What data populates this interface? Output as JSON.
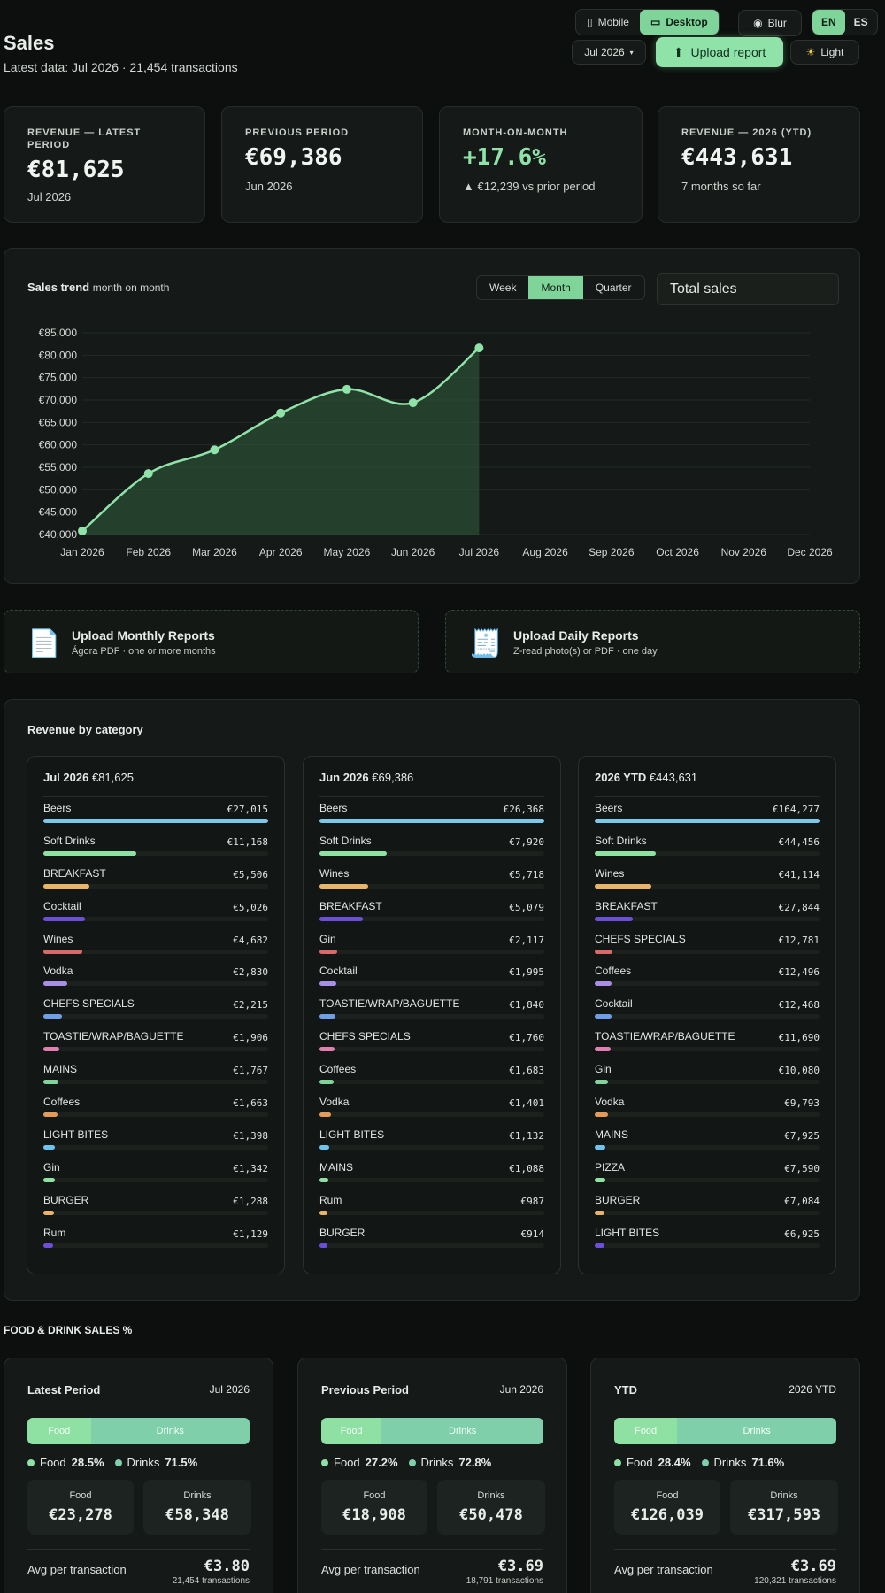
{
  "header": {
    "title": "Sales",
    "subtitle": "Latest data: Jul 2026 · 21,454 transactions",
    "view_mobile": "Mobile",
    "view_desktop": "Desktop",
    "blur": "Blur",
    "lang_en": "EN",
    "lang_es": "ES",
    "period": "Jul 2026",
    "upload": "Upload report",
    "theme": "Light"
  },
  "kpis": [
    {
      "label": "REVENUE — LATEST PERIOD",
      "value": "€81,625",
      "sub": "Jul 2026"
    },
    {
      "label": "PREVIOUS PERIOD",
      "value": "€69,386",
      "sub": "Jun 2026"
    },
    {
      "label": "MONTH-ON-MONTH",
      "value": "+17.6%",
      "sub": "▲ €12,239 vs prior period"
    },
    {
      "label": "REVENUE — 2026 (YTD)",
      "value": "€443,631",
      "sub": "7 months so far"
    }
  ],
  "trend": {
    "title": "Sales trend",
    "title_suffix": "month on month",
    "ranges": [
      "Week",
      "Month",
      "Quarter"
    ],
    "active_range": "Month",
    "metric": "Total sales"
  },
  "chart_data": {
    "type": "area",
    "title": "Sales trend",
    "x": [
      "Jan 2026",
      "Feb 2026",
      "Mar 2026",
      "Apr 2026",
      "May 2026",
      "Jun 2026",
      "Jul 2026",
      "Aug 2026",
      "Sep 2026",
      "Oct 2026",
      "Nov 2026",
      "Dec 2026"
    ],
    "series": [
      {
        "values": [
          40800,
          53600,
          58900,
          67100,
          72400,
          69386,
          81625,
          null,
          null,
          null,
          null,
          null
        ]
      }
    ],
    "ylim": [
      40000,
      85000
    ],
    "yticks": [
      40000,
      45000,
      50000,
      55000,
      60000,
      65000,
      70000,
      75000,
      80000,
      85000
    ],
    "ytick_labels": [
      "€40,000",
      "€45,000",
      "€50,000",
      "€55,000",
      "€60,000",
      "€65,000",
      "€70,000",
      "€75,000",
      "€80,000",
      "€85,000"
    ],
    "color": "#8fe2a8",
    "grid": true
  },
  "uploads": [
    {
      "icon": "document-icon",
      "title": "Upload Monthly Reports",
      "sub": "Ágora PDF · one or more months"
    },
    {
      "icon": "receipt-icon",
      "title": "Upload Daily Reports",
      "sub": "Z-read photo(s) or PDF · one day"
    }
  ],
  "categories": {
    "title": "Revenue by category",
    "columns": [
      {
        "period": "Jul 2026",
        "total": "€81,625",
        "items": [
          {
            "name": "Beers",
            "value": "€27,015",
            "amount": 27015
          },
          {
            "name": "Soft Drinks",
            "value": "€11,168",
            "amount": 11168
          },
          {
            "name": "BREAKFAST",
            "value": "€5,506",
            "amount": 5506
          },
          {
            "name": "Cocktail",
            "value": "€5,026",
            "amount": 5026
          },
          {
            "name": "Wines",
            "value": "€4,682",
            "amount": 4682
          },
          {
            "name": "Vodka",
            "value": "€2,830",
            "amount": 2830
          },
          {
            "name": "CHEFS SPECIALS",
            "value": "€2,215",
            "amount": 2215
          },
          {
            "name": "TOASTIE/WRAP/BAGUETTE",
            "value": "€1,906",
            "amount": 1906
          },
          {
            "name": "MAINS",
            "value": "€1,767",
            "amount": 1767
          },
          {
            "name": "Coffees",
            "value": "€1,663",
            "amount": 1663
          },
          {
            "name": "LIGHT BITES",
            "value": "€1,398",
            "amount": 1398
          },
          {
            "name": "Gin",
            "value": "€1,342",
            "amount": 1342
          },
          {
            "name": "BURGER",
            "value": "€1,288",
            "amount": 1288
          },
          {
            "name": "Rum",
            "value": "€1,129",
            "amount": 1129
          }
        ]
      },
      {
        "period": "Jun 2026",
        "total": "€69,386",
        "items": [
          {
            "name": "Beers",
            "value": "€26,368",
            "amount": 26368
          },
          {
            "name": "Soft Drinks",
            "value": "€7,920",
            "amount": 7920
          },
          {
            "name": "Wines",
            "value": "€5,718",
            "amount": 5718
          },
          {
            "name": "BREAKFAST",
            "value": "€5,079",
            "amount": 5079
          },
          {
            "name": "Gin",
            "value": "€2,117",
            "amount": 2117
          },
          {
            "name": "Cocktail",
            "value": "€1,995",
            "amount": 1995
          },
          {
            "name": "TOASTIE/WRAP/BAGUETTE",
            "value": "€1,840",
            "amount": 1840
          },
          {
            "name": "CHEFS SPECIALS",
            "value": "€1,760",
            "amount": 1760
          },
          {
            "name": "Coffees",
            "value": "€1,683",
            "amount": 1683
          },
          {
            "name": "Vodka",
            "value": "€1,401",
            "amount": 1401
          },
          {
            "name": "LIGHT BITES",
            "value": "€1,132",
            "amount": 1132
          },
          {
            "name": "MAINS",
            "value": "€1,088",
            "amount": 1088
          },
          {
            "name": "Rum",
            "value": "€987",
            "amount": 987
          },
          {
            "name": "BURGER",
            "value": "€914",
            "amount": 914
          }
        ]
      },
      {
        "period": "2026 YTD",
        "total": "€443,631",
        "items": [
          {
            "name": "Beers",
            "value": "€164,277",
            "amount": 164277
          },
          {
            "name": "Soft Drinks",
            "value": "€44,456",
            "amount": 44456
          },
          {
            "name": "Wines",
            "value": "€41,114",
            "amount": 41114
          },
          {
            "name": "BREAKFAST",
            "value": "€27,844",
            "amount": 27844
          },
          {
            "name": "CHEFS SPECIALS",
            "value": "€12,781",
            "amount": 12781
          },
          {
            "name": "Coffees",
            "value": "€12,496",
            "amount": 12496
          },
          {
            "name": "Cocktail",
            "value": "€12,468",
            "amount": 12468
          },
          {
            "name": "TOASTIE/WRAP/BAGUETTE",
            "value": "€11,690",
            "amount": 11690
          },
          {
            "name": "Gin",
            "value": "€10,080",
            "amount": 10080
          },
          {
            "name": "Vodka",
            "value": "€9,793",
            "amount": 9793
          },
          {
            "name": "MAINS",
            "value": "€7,925",
            "amount": 7925
          },
          {
            "name": "PIZZA",
            "value": "€7,590",
            "amount": 7590
          },
          {
            "name": "BURGER",
            "value": "€7,084",
            "amount": 7084
          },
          {
            "name": "LIGHT BITES",
            "value": "€6,925",
            "amount": 6925
          }
        ]
      }
    ],
    "bar_colors": [
      "#7cc8ea",
      "#8ee0a3",
      "#e8b46a",
      "#6b4fd6",
      "#d96a6a",
      "#a98ee6",
      "#6f9ee8",
      "#e07fb0",
      "#7fd49a",
      "#e39a5a",
      "#6ec3f0",
      "#8ee0a3",
      "#e8b46a",
      "#6b4fd6"
    ]
  },
  "food_drink": {
    "title": "FOOD & DRINK SALES %",
    "food_label": "Food",
    "drinks_label": "Drinks",
    "avg_label": "Avg per transaction",
    "cards": [
      {
        "title": "Latest Period",
        "period": "Jul 2026",
        "food_pct": 28.5,
        "drinks_pct": 71.5,
        "food_pct_text": "28.5%",
        "drinks_pct_text": "71.5%",
        "food_value": "€23,278",
        "drinks_value": "€58,348",
        "avg": "€3.80",
        "transactions": "21,454 transactions"
      },
      {
        "title": "Previous Period",
        "period": "Jun 2026",
        "food_pct": 27.2,
        "drinks_pct": 72.8,
        "food_pct_text": "27.2%",
        "drinks_pct_text": "72.8%",
        "food_value": "€18,908",
        "drinks_value": "€50,478",
        "avg": "€3.69",
        "transactions": "18,791 transactions"
      },
      {
        "title": "YTD",
        "period": "2026 YTD",
        "food_pct": 28.4,
        "drinks_pct": 71.6,
        "food_pct_text": "28.4%",
        "drinks_pct_text": "71.6%",
        "food_value": "€126,039",
        "drinks_value": "€317,593",
        "avg": "€3.69",
        "transactions": "120,321 transactions"
      }
    ]
  }
}
